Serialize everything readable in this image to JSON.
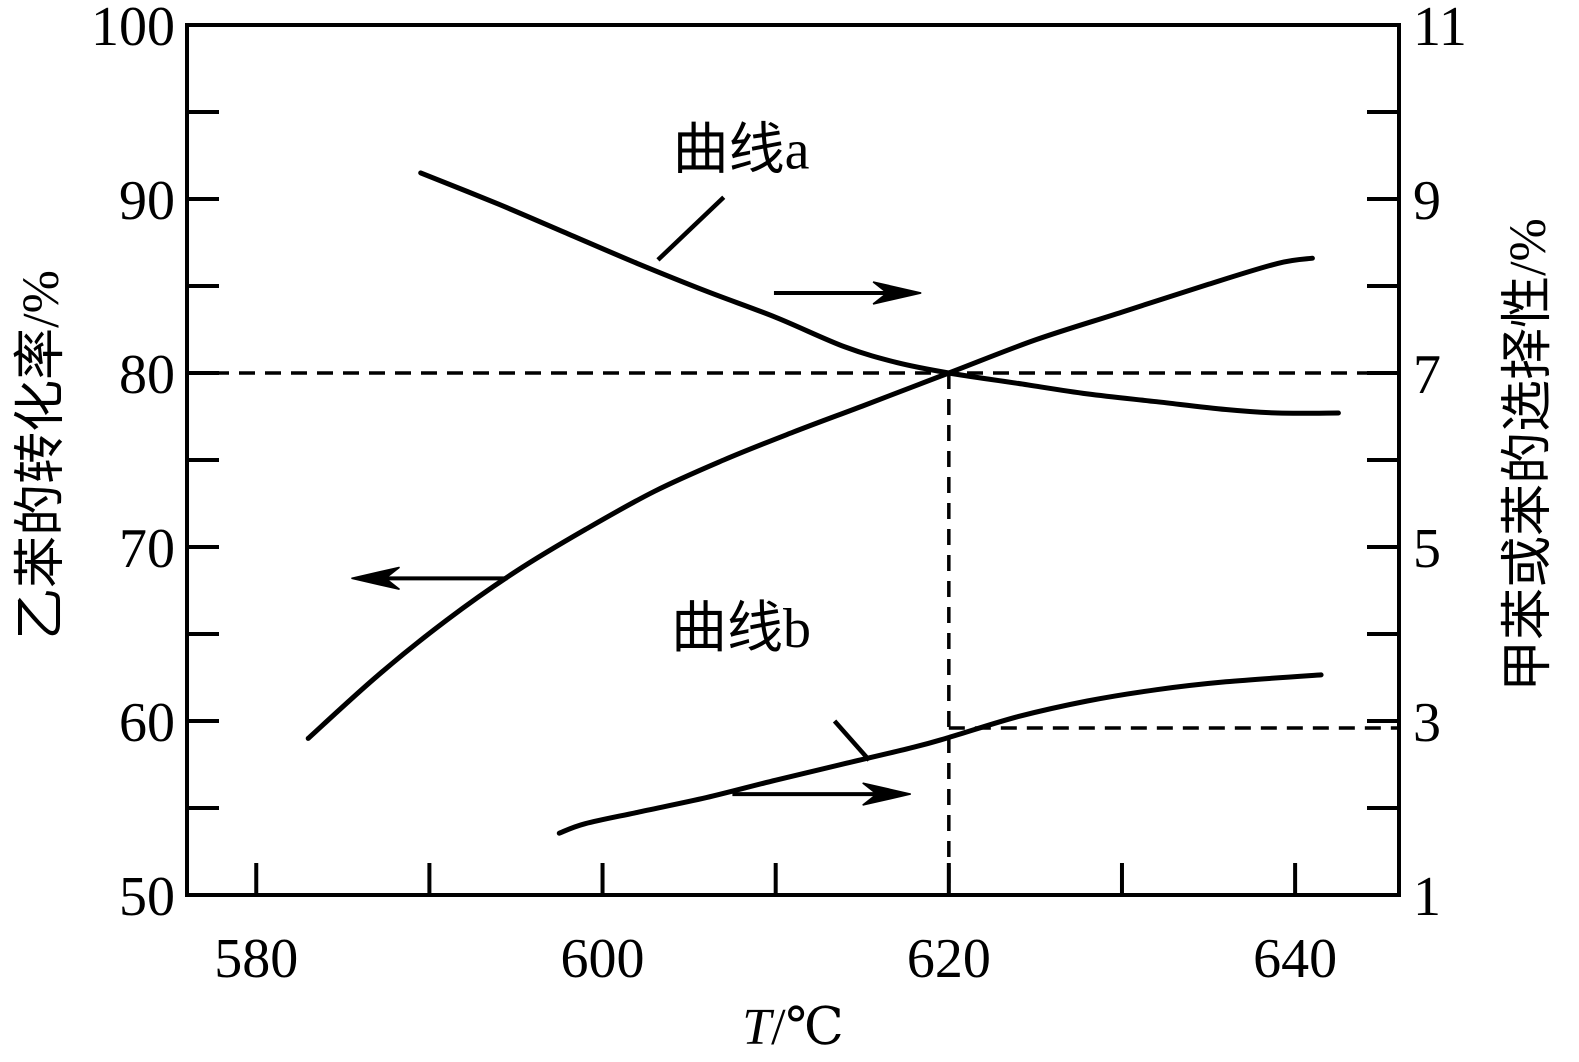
{
  "chart_data": {
    "type": "line",
    "xlabel": "T/℃",
    "xlabel_italic_part": "T",
    "xlabel_rest": "/℃",
    "ylabel_left": "乙苯的转化率/%",
    "ylabel_right": "甲苯或苯的选择性/%",
    "xlim": [
      576,
      646
    ],
    "ylim_left": [
      50,
      100
    ],
    "ylim_right": [
      1,
      11
    ],
    "x_ticks": [
      580,
      600,
      620,
      640
    ],
    "x_minor_ticks": [
      590,
      610,
      630
    ],
    "left_ticks": [
      50,
      60,
      70,
      80,
      90,
      100
    ],
    "left_minor_ticks": [
      55,
      65,
      75,
      85,
      95
    ],
    "right_ticks": [
      1,
      3,
      5,
      7,
      9,
      11
    ],
    "right_minor_ticks": [
      2,
      4,
      6,
      8,
      10
    ],
    "grid": false,
    "series": [
      {
        "axis": "left",
        "x": [
          583,
          587,
          591,
          595,
          599,
          603,
          607,
          611,
          615,
          620,
          625,
          630,
          635,
          639,
          641
        ],
        "y": [
          59,
          62.6,
          65.8,
          68.6,
          71,
          73.2,
          75,
          76.6,
          78.1,
          80,
          81.9,
          83.5,
          85.1,
          86.3,
          86.6
        ]
      },
      {
        "axis": "right",
        "x": [
          589.5,
          594,
          598,
          602,
          606,
          610,
          614,
          617,
          620,
          624,
          628,
          632,
          636,
          639,
          642.5
        ],
        "y": [
          9.3,
          8.94,
          8.6,
          8.26,
          7.94,
          7.64,
          7.3,
          7.12,
          7,
          6.88,
          6.76,
          6.67,
          6.58,
          6.54,
          6.54
        ]
      },
      {
        "axis": "right",
        "x": [
          597.5,
          599,
          602,
          606,
          610,
          614,
          618,
          620,
          624,
          628,
          632,
          636,
          641.5
        ],
        "y": [
          1.71,
          1.82,
          1.95,
          2.12,
          2.32,
          2.51,
          2.7,
          2.81,
          3.05,
          3.23,
          3.36,
          3.45,
          3.53
        ]
      }
    ],
    "reference_lines": [
      {
        "style": "dashed",
        "from": {
          "axis": "left",
          "x": 576,
          "y": 80
        },
        "to": {
          "axis": "left",
          "x": 646,
          "y": 80
        }
      },
      {
        "style": "dashed",
        "from": {
          "axis": "left",
          "x": 620,
          "y": 80
        },
        "to": {
          "axis": "left",
          "x": 620,
          "y": 50
        }
      },
      {
        "style": "dashed",
        "from": {
          "axis": "right",
          "x": 620,
          "y": 2.92
        },
        "to": {
          "axis": "right",
          "x": 646,
          "y": 2.92
        }
      }
    ],
    "annotations": [
      {
        "text": "曲线a",
        "x": 608,
        "y_axis": "right",
        "y": 9.35
      },
      {
        "text": "曲线b",
        "x": 608,
        "y_axis": "right",
        "y": 3.85
      }
    ],
    "leader_lines": [
      {
        "from": {
          "x": 603.2,
          "y": 8.3
        },
        "to": {
          "x": 607,
          "y": 9.02
        },
        "axis": "right"
      },
      {
        "from": {
          "x": 615.4,
          "y": 2.55
        },
        "to": {
          "x": 613.4,
          "y": 3.0
        },
        "axis": "right"
      }
    ],
    "arrows": [
      {
        "direction": "left",
        "from": {
          "x": 594.5,
          "y": 68.2
        },
        "to": {
          "x": 585.5,
          "y": 68.2
        },
        "axis": "left",
        "meaning": "read against left axis"
      },
      {
        "direction": "right",
        "from": {
          "x": 609.9,
          "y": 84.6
        },
        "to": {
          "x": 618.4,
          "y": 84.6
        },
        "axis": "left",
        "meaning": "read against right axis"
      },
      {
        "direction": "right",
        "from": {
          "x": 607.5,
          "y": 55.8
        },
        "to": {
          "x": 617.8,
          "y": 55.8
        },
        "axis": "left",
        "meaning": "read against right axis"
      }
    ]
  }
}
